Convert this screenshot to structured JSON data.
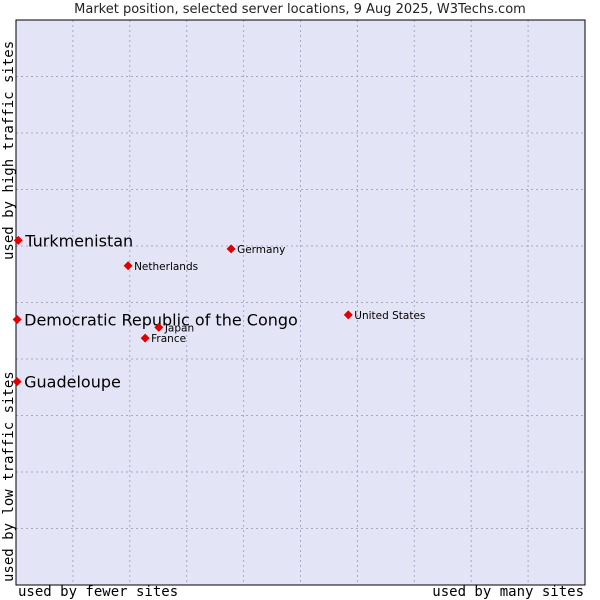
{
  "chart_data": {
    "type": "scatter",
    "title": "Market position, selected server locations, 9 Aug 2025, W3Techs.com",
    "xlabel_left": "used by fewer sites",
    "xlabel_right": "used by many sites",
    "ylabel_top": "used by high traffic sites",
    "ylabel_bottom": "used by low traffic sites",
    "xlim": [
      0,
      100
    ],
    "ylim": [
      0,
      100
    ],
    "grid": true,
    "colors": {
      "plot_bg": "#e3e5f7",
      "grid": "#a8a8c4",
      "border": "#000000",
      "marker": "#e00000"
    },
    "points": [
      {
        "name": "Turkmenistan",
        "x": 0.4,
        "y": 61,
        "emphasis": true
      },
      {
        "name": "Democratic Republic of the Congo",
        "x": 0.2,
        "y": 47,
        "emphasis": true
      },
      {
        "name": "Guadeloupe",
        "x": 0.2,
        "y": 36,
        "emphasis": true
      },
      {
        "name": "Germany",
        "x": 37.8,
        "y": 59.5,
        "emphasis": false
      },
      {
        "name": "Netherlands",
        "x": 19.7,
        "y": 56.5,
        "emphasis": false
      },
      {
        "name": "United States",
        "x": 58.4,
        "y": 47.8,
        "emphasis": false
      },
      {
        "name": "Japan",
        "x": 25.1,
        "y": 45.6,
        "emphasis": false
      },
      {
        "name": "France",
        "x": 22.7,
        "y": 43.7,
        "emphasis": false
      }
    ]
  }
}
